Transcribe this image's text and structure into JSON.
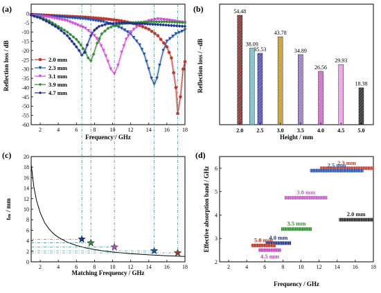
{
  "panels": {
    "a": {
      "label": "(a)"
    },
    "b": {
      "label": "(b)"
    },
    "c": {
      "label": "(c)"
    },
    "d": {
      "label": "(d)"
    }
  },
  "chart_data": [
    {
      "id": "a",
      "type": "line",
      "xlabel": "Frequency / GHz",
      "ylabel": "Reflection loss / dB",
      "xlim": [
        1,
        18
      ],
      "ylim": [
        -60,
        5
      ],
      "xticks": [
        2,
        4,
        6,
        8,
        10,
        12,
        14,
        16,
        18
      ],
      "yticks": [
        0,
        -5,
        -10,
        -15,
        -20,
        -25,
        -30,
        -35,
        -40,
        -45,
        -50,
        -55,
        -60
      ],
      "legend_position": "left",
      "series": [
        {
          "name": "2.0 mm",
          "color": "#c0392b",
          "marker": "circle",
          "x": [
            1,
            3,
            5,
            7,
            9,
            11,
            12,
            13,
            14,
            15,
            16,
            16.5,
            17,
            17.2,
            17.5,
            17.8,
            18
          ],
          "y": [
            -0.5,
            -1,
            -1.5,
            -2,
            -2.8,
            -4,
            -5,
            -6.5,
            -8.5,
            -12,
            -18,
            -24,
            -40,
            -54,
            -45,
            -30,
            -26
          ]
        },
        {
          "name": "2.3 mm",
          "color": "#1f4fa8",
          "marker": "triangle-down",
          "x": [
            1,
            3,
            5,
            7,
            9,
            10,
            11,
            12,
            13,
            13.5,
            14,
            14.3,
            14.6,
            14.9,
            15.2,
            15.6,
            16,
            17,
            18
          ],
          "y": [
            -0.8,
            -1.5,
            -2.2,
            -3,
            -4.5,
            -6,
            -8,
            -11,
            -17,
            -22,
            -30,
            -35,
            -38.1,
            -35,
            -28,
            -20,
            -15,
            -11,
            -9
          ]
        },
        {
          "name": "3.1 mm",
          "color": "#d14fd6",
          "marker": "triangle-down",
          "x": [
            1,
            3,
            5,
            7,
            8,
            8.5,
            9,
            9.5,
            9.8,
            10.2,
            10.6,
            11,
            11.5,
            12,
            13,
            14,
            15,
            16,
            18
          ],
          "y": [
            -1,
            -2,
            -4,
            -8,
            -12,
            -15,
            -20,
            -26,
            -30,
            -32.5,
            -28,
            -21,
            -14,
            -10,
            -6,
            -4,
            -3,
            -3.5,
            -5
          ]
        },
        {
          "name": "3.9 mm",
          "color": "#2e8b2e",
          "marker": "diamond",
          "x": [
            1,
            2,
            3,
            4,
            5,
            6,
            6.5,
            7,
            7.3,
            7.6,
            7.9,
            8.3,
            8.8,
            9.5,
            10.5,
            12,
            14,
            16,
            18
          ],
          "y": [
            -1,
            -2,
            -4,
            -7,
            -10,
            -14,
            -17,
            -21,
            -24,
            -25.5,
            -22,
            -16,
            -11,
            -8,
            -6,
            -5,
            -4.5,
            -4.5,
            -5
          ]
        },
        {
          "name": "4.7 mm",
          "color": "#1c2f8f",
          "marker": "diamond",
          "x": [
            1,
            2,
            3,
            4,
            5,
            5.5,
            6,
            6.3,
            6.6,
            6.9,
            7.2,
            7.6,
            8,
            8.5,
            9.5,
            11,
            13,
            15,
            18
          ],
          "y": [
            -1,
            -2.5,
            -5,
            -8,
            -12,
            -15,
            -18,
            -20,
            -22.5,
            -21,
            -17,
            -12,
            -9,
            -7,
            -5.5,
            -5,
            -5.5,
            -6,
            -7
          ]
        }
      ]
    },
    {
      "id": "b",
      "type": "bar",
      "xlabel": "Height / mm",
      "ylabel": "Reflection loss / −dB",
      "xlim": [
        1.5,
        5.3
      ],
      "ylim": [
        0,
        60
      ],
      "xticks": [
        2.0,
        2.5,
        3.0,
        3.5,
        4.0,
        4.5,
        5.0
      ],
      "tick_labels": [
        "2.0",
        "2.5",
        "3.0",
        "3.5",
        "4.0",
        "4.5",
        "5.0"
      ],
      "x": [
        2.0,
        2.3,
        2.5,
        3.0,
        3.5,
        4.0,
        4.5,
        5.0
      ],
      "values": [
        54.48,
        38.09,
        35.53,
        43.78,
        34.89,
        26.56,
        29.93,
        18.38
      ],
      "value_labels": [
        "54.48",
        "38.09",
        "35.53",
        "43.78",
        "34.89",
        "26.56",
        "29.93",
        "18.38"
      ],
      "colors": [
        "#8b3a3a",
        "#7fc0c8",
        "#5a58b8",
        "#c8a030",
        "#9c7fc8",
        "#d070c8",
        "#f0a0e8",
        "#3a3a3a"
      ]
    },
    {
      "id": "c",
      "type": "line",
      "xlabel": "Matching Frequency / GHz",
      "ylabel": "tₘ / mm",
      "xlim": [
        1,
        18
      ],
      "ylim": [
        0,
        20
      ],
      "xticks": [
        2,
        4,
        6,
        8,
        10,
        12,
        14,
        16,
        18
      ],
      "yticks": [
        0,
        2,
        4,
        6,
        8,
        10,
        12,
        14,
        16,
        18,
        20
      ],
      "curve": {
        "x": [
          1,
          1.3,
          1.6,
          2,
          2.5,
          3,
          3.5,
          4,
          5,
          6,
          7,
          8,
          9,
          10,
          12,
          14,
          16,
          18
        ],
        "y": [
          18.5,
          14.2,
          11.6,
          9.3,
          7.4,
          6.2,
          5.3,
          4.65,
          3.72,
          3.1,
          2.66,
          2.33,
          2.07,
          1.86,
          1.55,
          1.33,
          1.16,
          1.03
        ]
      },
      "points": [
        {
          "x": 6.6,
          "y": 4.3,
          "color": "#1c2f8f"
        },
        {
          "x": 7.6,
          "y": 3.6,
          "color": "#2e8b2e"
        },
        {
          "x": 10.2,
          "y": 2.8,
          "color": "#c040c0"
        },
        {
          "x": 14.6,
          "y": 2.1,
          "color": "#1f4fa8"
        },
        {
          "x": 17.2,
          "y": 1.7,
          "color": "#b03020"
        }
      ]
    },
    {
      "id": "d",
      "type": "bar",
      "orientation": "horizontal-range",
      "xlabel": "Frequency / GHz",
      "ylabel": "Effective absorption band / GHz",
      "xlim": [
        1,
        18
      ],
      "ylim": [
        2,
        6.5
      ],
      "xticks": [
        2,
        4,
        6,
        8,
        10,
        12,
        14,
        16,
        18
      ],
      "yticks": [
        2,
        3,
        4,
        5,
        6
      ],
      "ranges": [
        {
          "label": "2.3 mm",
          "start": 12.1,
          "end": 18,
          "width": 6.0,
          "color": "#c0392b"
        },
        {
          "label": "2.5 mm",
          "start": 11,
          "end": 16.9,
          "width": 5.9,
          "color": "#1f4fa8"
        },
        {
          "label": "3.0 mm",
          "start": 8.2,
          "end": 12.9,
          "width": 4.74,
          "color": "#d14fd6"
        },
        {
          "label": "2.0 mm",
          "start": 14.2,
          "end": 18,
          "width": 3.8,
          "color": "#222222"
        },
        {
          "label": "3.5 mm",
          "start": 7.8,
          "end": 11.2,
          "width": 3.4,
          "color": "#2e8b2e"
        },
        {
          "label": "4.0 mm",
          "start": 6.1,
          "end": 8.9,
          "width": 2.8,
          "color": "#1c2f8f"
        },
        {
          "label": "5.0 mm",
          "start": 4.5,
          "end": 7.2,
          "width": 2.7,
          "color": "#b03020"
        },
        {
          "label": "4.5 mm",
          "start": 5.3,
          "end": 7.8,
          "width": 2.5,
          "color": "#c040c0"
        }
      ]
    }
  ]
}
